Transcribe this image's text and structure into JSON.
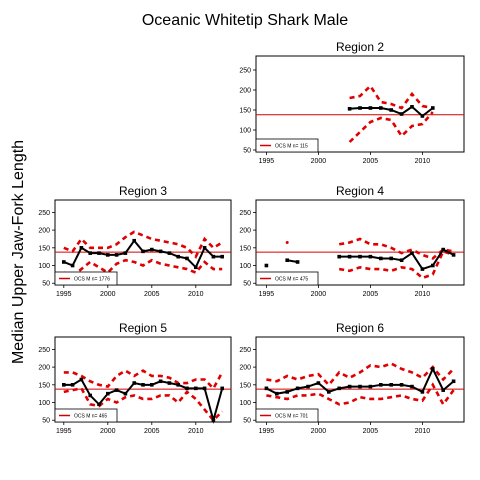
{
  "figure": {
    "title": "Oceanic Whitetip Shark Male",
    "ylabel": "Median Upper Jaw-Fork Length"
  },
  "chart_data": [
    {
      "type": "line",
      "title": "Region 2",
      "legend_label": "OCS M n= 115",
      "xlim": [
        1994,
        2014
      ],
      "ylim": [
        45,
        285
      ],
      "xticks": [
        "1995",
        "2000",
        "2005",
        "2010"
      ],
      "yticks": [
        "50",
        "100",
        "150",
        "200",
        "250"
      ],
      "reference_line": 138,
      "series": [
        {
          "x": [
            2003,
            2004,
            2005,
            2006,
            2007,
            2008,
            2009,
            2010,
            2011
          ],
          "median": [
            153,
            155,
            155,
            155,
            150,
            140,
            158,
            135,
            155
          ],
          "upper": [
            180,
            185,
            210,
            170,
            165,
            155,
            190,
            160,
            155
          ],
          "lower": [
            70,
            95,
            120,
            130,
            125,
            85,
            110,
            115,
            145
          ]
        }
      ]
    },
    {
      "type": "line",
      "title": "Region 3",
      "legend_label": "OCS M n= 1776",
      "xlim": [
        1994,
        2014
      ],
      "ylim": [
        45,
        285
      ],
      "xticks": [
        "1995",
        "2000",
        "2005",
        "2010"
      ],
      "yticks": [
        "50",
        "100",
        "150",
        "200",
        "250"
      ],
      "reference_line": 138,
      "series": [
        {
          "x": [
            1995,
            1996,
            1997,
            1998,
            1999,
            2000,
            2001,
            2002,
            2003,
            2004,
            2005,
            2006,
            2007,
            2008,
            2009,
            2010,
            2011,
            2012,
            2013
          ],
          "median": [
            110,
            100,
            150,
            135,
            135,
            130,
            130,
            135,
            170,
            140,
            145,
            140,
            135,
            125,
            120,
            95,
            150,
            125,
            125
          ],
          "upper": [
            150,
            140,
            175,
            150,
            150,
            150,
            160,
            180,
            195,
            185,
            175,
            170,
            165,
            160,
            150,
            125,
            175,
            150,
            165
          ],
          "lower": [
            80,
            70,
            90,
            110,
            95,
            80,
            105,
            115,
            110,
            100,
            115,
            105,
            100,
            95,
            90,
            80,
            110,
            90,
            90
          ]
        }
      ]
    },
    {
      "type": "line",
      "title": "Region 4",
      "legend_label": "OCS M n= 475",
      "xlim": [
        1994,
        2014
      ],
      "ylim": [
        45,
        285
      ],
      "xticks": [
        "1995",
        "2000",
        "2005",
        "2010"
      ],
      "yticks": [
        "50",
        "100",
        "150",
        "200",
        "250"
      ],
      "reference_line": 138,
      "series": [
        {
          "x": [
            1995,
            null,
            1997,
            1998,
            null,
            2002,
            2003,
            2004,
            2005,
            2006,
            2007,
            2008,
            2009,
            2010,
            2011,
            2012,
            2013
          ],
          "median": [
            100,
            null,
            115,
            110,
            null,
            125,
            125,
            125,
            125,
            120,
            120,
            115,
            135,
            90,
            100,
            145,
            130
          ],
          "upper": [
            null,
            null,
            165,
            null,
            null,
            160,
            165,
            175,
            160,
            160,
            150,
            135,
            145,
            130,
            120,
            145,
            140
          ],
          "lower": [
            null,
            null,
            null,
            null,
            null,
            90,
            85,
            95,
            90,
            90,
            85,
            95,
            90,
            65,
            75,
            140,
            130
          ]
        }
      ]
    },
    {
      "type": "line",
      "title": "Region 5",
      "legend_label": "OCS M n= 465",
      "xlim": [
        1994,
        2014
      ],
      "ylim": [
        45,
        285
      ],
      "xticks": [
        "1995",
        "2000",
        "2005",
        "2010"
      ],
      "yticks": [
        "50",
        "100",
        "150",
        "200",
        "250"
      ],
      "reference_line": 138,
      "series": [
        {
          "x": [
            1995,
            1996,
            1997,
            1998,
            1999,
            2000,
            2001,
            2002,
            2003,
            2004,
            2005,
            2006,
            2007,
            2008,
            2009,
            2010,
            2011,
            2012,
            2013
          ],
          "median": [
            150,
            150,
            165,
            120,
            95,
            125,
            135,
            125,
            155,
            150,
            150,
            160,
            155,
            150,
            140,
            140,
            140,
            50,
            140
          ],
          "upper": [
            185,
            185,
            175,
            160,
            150,
            145,
            175,
            190,
            175,
            190,
            175,
            175,
            170,
            155,
            155,
            165,
            165,
            140,
            185
          ],
          "lower": [
            130,
            135,
            140,
            95,
            90,
            110,
            100,
            115,
            120,
            110,
            110,
            120,
            120,
            100,
            130,
            110,
            80,
            50,
            75
          ]
        }
      ]
    },
    {
      "type": "line",
      "title": "Region 6",
      "legend_label": "OCS M n= 701",
      "xlim": [
        1994,
        2014
      ],
      "ylim": [
        45,
        285
      ],
      "xticks": [
        "1995",
        "2000",
        "2005",
        "2010"
      ],
      "yticks": [
        "50",
        "100",
        "150",
        "200",
        "250"
      ],
      "reference_line": 138,
      "series": [
        {
          "x": [
            1995,
            1996,
            1997,
            1998,
            1999,
            2000,
            2001,
            2002,
            2003,
            2004,
            2005,
            2006,
            2007,
            2008,
            2009,
            2010,
            2011,
            2012,
            2013
          ],
          "median": [
            140,
            125,
            130,
            140,
            145,
            155,
            130,
            140,
            145,
            145,
            145,
            150,
            150,
            150,
            145,
            130,
            195,
            135,
            160
          ],
          "upper": [
            165,
            160,
            175,
            165,
            175,
            180,
            150,
            185,
            170,
            185,
            205,
            200,
            210,
            195,
            185,
            170,
            200,
            165,
            195
          ],
          "lower": [
            120,
            115,
            110,
            120,
            120,
            125,
            110,
            95,
            100,
            115,
            110,
            110,
            115,
            120,
            110,
            105,
            150,
            95,
            135
          ]
        }
      ]
    }
  ]
}
